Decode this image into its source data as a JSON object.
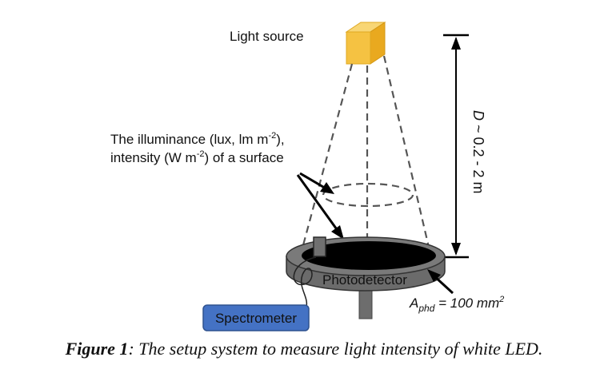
{
  "labels": {
    "light_source": "Light source",
    "illuminance_line1_a": "The illuminance (lux, lm m",
    "illuminance_line1_sup": "-2",
    "illuminance_line1_b": "),",
    "illuminance_line2_a": "intensity (W m",
    "illuminance_line2_sup": "-2",
    "illuminance_line2_b": ") of a surface",
    "distance_var": "D",
    "distance_range": " ~ 0.2 - 2 m",
    "photodetector": "Photodetector",
    "area_var": "A",
    "area_sub": "phd",
    "area_value": " = 100 mm",
    "area_sup": "2",
    "spectrometer": "Spectrometer"
  },
  "caption": {
    "figure": "Figure 1",
    "text": ": The setup system to measure light intensity of white LED."
  },
  "colors": {
    "light_source": "#f5c242",
    "spectrometer_fill": "#4472c4",
    "detector_body": "#6b6b6b",
    "detector_face": "#000000"
  }
}
